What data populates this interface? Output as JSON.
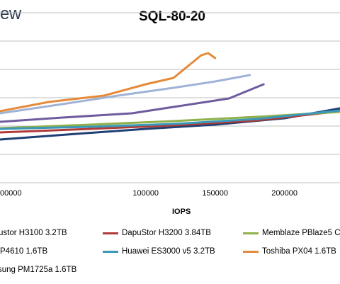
{
  "brand": {
    "text": "ew"
  },
  "chart_data": {
    "type": "line",
    "title": "SQL-80-20",
    "xlabel": "IOPS",
    "ylabel": "",
    "xlim": [
      -5000,
      240000
    ],
    "x_ticks": [
      {
        "value": 0,
        "label": "00000"
      },
      {
        "value": 100000,
        "label": "100000"
      },
      {
        "value": 150000,
        "label": "150000"
      },
      {
        "value": 200000,
        "label": "200000"
      }
    ],
    "grid": true,
    "legend_position": "bottom",
    "series": [
      {
        "name": "ustor H3100 3.2TB",
        "color": "#1f3f73",
        "points": [
          [
            -5000,
            197
          ],
          [
            50000,
            189
          ],
          [
            100000,
            182
          ],
          [
            150000,
            176
          ],
          [
            200000,
            167
          ],
          [
            240000,
            153
          ]
        ]
      },
      {
        "name": "DapuStor H3200 3.84TB",
        "color": "#b03a38",
        "points": [
          [
            -5000,
            187
          ],
          [
            60000,
            182
          ],
          [
            120000,
            177
          ],
          [
            180000,
            170
          ],
          [
            240000,
            157
          ]
        ]
      },
      {
        "name": "Memblaze PBlaze5 C",
        "color": "#8fb04a",
        "points": [
          [
            -5000,
            181
          ],
          [
            60000,
            176
          ],
          [
            120000,
            171
          ],
          [
            180000,
            165
          ],
          [
            240000,
            158
          ]
        ]
      },
      {
        "name": "P4610 1.6TB",
        "color": "#6f5b9e",
        "points": [
          [
            -5000,
            172
          ],
          [
            40000,
            166
          ],
          [
            90000,
            160
          ],
          [
            140000,
            145
          ],
          [
            160000,
            139
          ],
          [
            185000,
            119
          ]
        ]
      },
      {
        "name": "Huawei ES3000 v5 3.2TB",
        "color": "#3a98b8",
        "points": [
          [
            -5000,
            182
          ],
          [
            60000,
            179
          ],
          [
            120000,
            175
          ],
          [
            180000,
            168
          ],
          [
            240000,
            156
          ]
        ]
      },
      {
        "name": "Toshiba PX04 1.6TB",
        "color": "#e58a3a",
        "points": [
          [
            -5000,
            157
          ],
          [
            30000,
            144
          ],
          [
            70000,
            135
          ],
          [
            100000,
            119
          ],
          [
            120000,
            110
          ],
          [
            140000,
            78
          ],
          [
            145000,
            75
          ],
          [
            150000,
            82
          ]
        ]
      },
      {
        "name": "sung PM1725a 1.6TB",
        "color": "#9fb3d6",
        "points": [
          [
            -5000,
            160
          ],
          [
            40000,
            147
          ],
          [
            80000,
            135
          ],
          [
            120000,
            124
          ],
          [
            150000,
            115
          ],
          [
            175000,
            106
          ]
        ]
      }
    ]
  }
}
